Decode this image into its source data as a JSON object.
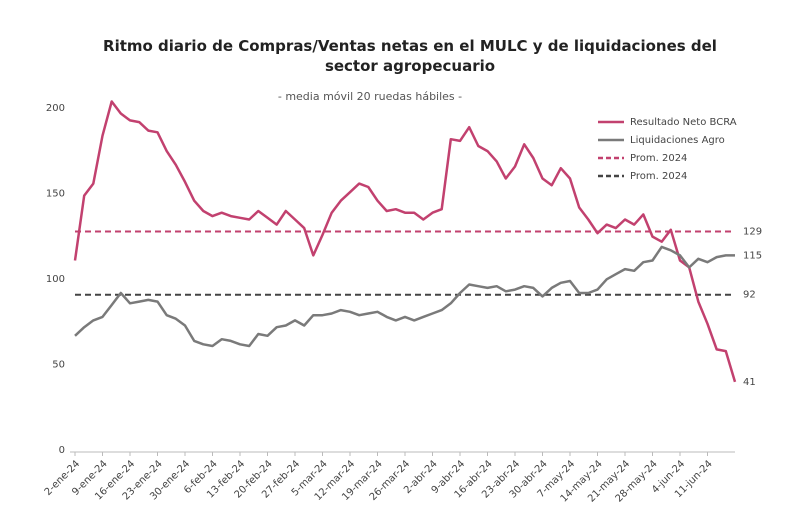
{
  "chart_data": {
    "type": "line",
    "title": "Ritmo diario de Compras/Ventas netas en el MULC y de liquidaciones del sector agropecuario",
    "subtitle": "- media móvil 20 ruedas hábiles -",
    "categories": [
      "2-ene-24",
      null,
      null,
      "9-ene-24",
      null,
      null,
      "16-ene-24",
      null,
      null,
      "23-ene-24",
      null,
      null,
      "30-ene-24",
      null,
      null,
      "6-feb-24",
      null,
      null,
      "13-feb-24",
      null,
      null,
      "20-feb-24",
      null,
      null,
      "27-feb-24",
      null,
      null,
      "5-mar-24",
      null,
      null,
      "12-mar-24",
      null,
      null,
      "19-mar-24",
      null,
      null,
      "26-mar-24",
      null,
      null,
      "2-abr-24",
      null,
      null,
      "9-abr-24",
      null,
      null,
      "16-abr-24",
      null,
      null,
      "23-abr-24",
      null,
      null,
      "30-abr-24",
      null,
      null,
      "7-may-24",
      null,
      null,
      "14-may-24",
      null,
      null,
      "21-may-24",
      null,
      null,
      "28-may-24",
      null,
      null,
      "4-jun-24",
      null,
      null,
      "11-jun-24",
      null,
      null,
      null
    ],
    "series": [
      {
        "name": "Resultado Neto BCRA",
        "color": "#c2416f",
        "values": [
          112,
          150,
          157,
          185,
          205,
          198,
          194,
          193,
          188,
          187,
          176,
          168,
          158,
          147,
          141,
          138,
          140,
          138,
          137,
          136,
          141,
          137,
          133,
          141,
          136,
          131,
          115,
          127,
          140,
          147,
          152,
          157,
          155,
          147,
          141,
          142,
          140,
          140,
          136,
          140,
          142,
          183,
          182,
          190,
          179,
          176,
          170,
          160,
          167,
          180,
          172,
          160,
          156,
          166,
          160,
          143,
          136,
          128,
          133,
          131,
          136,
          133,
          139,
          126,
          123,
          130,
          112,
          108,
          88,
          75,
          60,
          59,
          41
        ]
      },
      {
        "name": "Liquidaciones Agro",
        "color": "#7a7a7a",
        "values": [
          68,
          73,
          77,
          79,
          86,
          93,
          87,
          88,
          89,
          88,
          80,
          78,
          74,
          65,
          63,
          62,
          66,
          65,
          63,
          62,
          69,
          68,
          73,
          74,
          77,
          74,
          80,
          80,
          81,
          83,
          82,
          80,
          81,
          82,
          79,
          77,
          79,
          77,
          79,
          81,
          83,
          87,
          93,
          98,
          97,
          96,
          97,
          94,
          95,
          97,
          96,
          91,
          96,
          99,
          100,
          93,
          93,
          95,
          101,
          104,
          107,
          106,
          111,
          112,
          120,
          118,
          115,
          108,
          113,
          111,
          114,
          115,
          115
        ]
      }
    ],
    "reference_lines": [
      {
        "name": "Prom. 2024",
        "color": "#c2416f",
        "value": 129
      },
      {
        "name": "Prom. 2024",
        "color": "#444444",
        "value": 92
      }
    ],
    "ylim": [
      0,
      210
    ],
    "yticks": [
      0,
      50,
      100,
      150,
      200
    ],
    "grid": false
  }
}
